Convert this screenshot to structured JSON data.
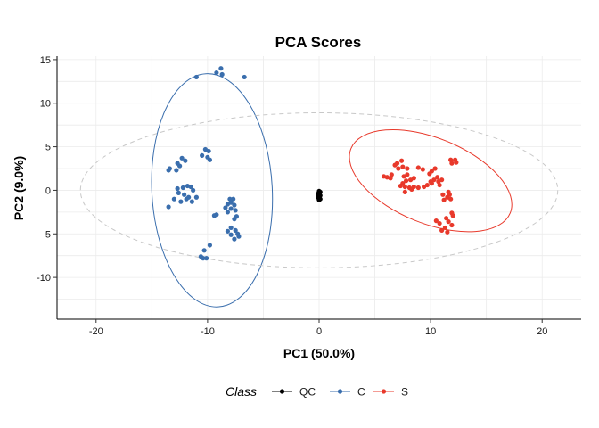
{
  "chart_data": {
    "type": "scatter",
    "title": "PCA Scores",
    "xlabel": "PC1 (50.0%)",
    "ylabel": "PC2 (9.0%)",
    "xlim": [
      -23.5,
      23.5
    ],
    "ylim": [
      -14.8,
      15.4
    ],
    "xticks": [
      -20,
      -10,
      0,
      10,
      20
    ],
    "yticks": [
      -10,
      -5,
      0,
      5,
      10,
      15
    ],
    "grid": true,
    "legend": {
      "title": "Class",
      "position": "bottom",
      "entries": [
        "QC",
        "C",
        "S"
      ]
    },
    "colors": {
      "QC": "#000000",
      "C": "#3a6ead",
      "S": "#e8392b",
      "overall": "#c8c8c8"
    },
    "ellipses": [
      {
        "name": "C",
        "cx": -9.6,
        "cy": 0,
        "rx": 5.4,
        "ry": 13.4,
        "angle_deg": 3,
        "style": "solid"
      },
      {
        "name": "S",
        "cx": 10.0,
        "cy": 1.1,
        "rx": 7.7,
        "ry": 4.9,
        "angle_deg": -22,
        "style": "solid"
      },
      {
        "name": "overall",
        "cx": 0.0,
        "cy": 0.0,
        "rx": 21.4,
        "ry": 8.9,
        "angle_deg": 0,
        "style": "dashed"
      }
    ],
    "series": [
      {
        "name": "QC",
        "points": [
          [
            0,
            -0.1
          ],
          [
            0,
            -0.3
          ],
          [
            0,
            -0.5
          ],
          [
            0,
            -0.7
          ],
          [
            0,
            -0.9
          ],
          [
            0,
            -1.1
          ],
          [
            -0.1,
            -0.4
          ],
          [
            0.1,
            -0.6
          ],
          [
            -0.1,
            -0.8
          ],
          [
            0.1,
            -0.2
          ],
          [
            0.1,
            -1.0
          ],
          [
            -0.1,
            -0.6
          ]
        ]
      },
      {
        "name": "C",
        "points": [
          [
            -11.0,
            13.0
          ],
          [
            -9.2,
            13.5
          ],
          [
            -8.8,
            14.0
          ],
          [
            -8.7,
            13.3
          ],
          [
            -6.7,
            13.0
          ],
          [
            -10.2,
            4.7
          ],
          [
            -9.9,
            4.5
          ],
          [
            -10.0,
            3.8
          ],
          [
            -10.5,
            4.0
          ],
          [
            -9.8,
            3.5
          ],
          [
            -12.3,
            3.7
          ],
          [
            -12.0,
            3.4
          ],
          [
            -12.7,
            3.1
          ],
          [
            -12.5,
            2.8
          ],
          [
            -13.4,
            2.5
          ],
          [
            -12.8,
            2.3
          ],
          [
            -13.5,
            2.3
          ],
          [
            -11.5,
            0.4
          ],
          [
            -11.8,
            0.5
          ],
          [
            -12.2,
            0.3
          ],
          [
            -12.7,
            0.2
          ],
          [
            -11.3,
            0.0
          ],
          [
            -12.6,
            -0.3
          ],
          [
            -12.1,
            -0.5
          ],
          [
            -11.7,
            -0.8
          ],
          [
            -11.0,
            -0.8
          ],
          [
            -11.9,
            -1.0
          ],
          [
            -11.4,
            -1.3
          ],
          [
            -13.0,
            -1.0
          ],
          [
            -12.4,
            -1.3
          ],
          [
            -13.5,
            -1.9
          ],
          [
            -8.0,
            -1.0
          ],
          [
            -7.7,
            -1.0
          ],
          [
            -7.9,
            -1.4
          ],
          [
            -8.2,
            -1.6
          ],
          [
            -7.6,
            -1.7
          ],
          [
            -8.4,
            -2.0
          ],
          [
            -7.9,
            -2.1
          ],
          [
            -7.5,
            -2.3
          ],
          [
            -8.2,
            -2.5
          ],
          [
            -9.2,
            -2.8
          ],
          [
            -9.4,
            -2.9
          ],
          [
            -7.4,
            -3.0
          ],
          [
            -7.6,
            -3.3
          ],
          [
            -7.9,
            -4.3
          ],
          [
            -7.5,
            -4.6
          ],
          [
            -8.2,
            -4.7
          ],
          [
            -7.3,
            -5.0
          ],
          [
            -7.9,
            -5.1
          ],
          [
            -7.2,
            -5.3
          ],
          [
            -7.6,
            -5.6
          ],
          [
            -9.8,
            -6.3
          ],
          [
            -10.3,
            -6.9
          ],
          [
            -10.6,
            -7.6
          ],
          [
            -10.4,
            -7.8
          ],
          [
            -10.1,
            -7.8
          ]
        ]
      },
      {
        "name": "S",
        "points": [
          [
            11.8,
            3.5
          ],
          [
            12.2,
            3.5
          ],
          [
            12.3,
            3.2
          ],
          [
            11.9,
            3.1
          ],
          [
            7.4,
            3.4
          ],
          [
            7.0,
            3.1
          ],
          [
            6.8,
            2.9
          ],
          [
            7.5,
            2.7
          ],
          [
            7.1,
            2.5
          ],
          [
            7.9,
            2.5
          ],
          [
            8.9,
            2.6
          ],
          [
            9.3,
            2.4
          ],
          [
            10.4,
            2.5
          ],
          [
            10.1,
            2.2
          ],
          [
            9.9,
            1.9
          ],
          [
            10.6,
            1.5
          ],
          [
            10.3,
            1.2
          ],
          [
            10.7,
            1.0
          ],
          [
            10.1,
            0.8
          ],
          [
            10.8,
            0.6
          ],
          [
            11.0,
            1.2
          ],
          [
            10.0,
            1.0
          ],
          [
            7.9,
            1.8
          ],
          [
            7.6,
            1.6
          ],
          [
            6.5,
            1.8
          ],
          [
            6.1,
            1.5
          ],
          [
            5.8,
            1.6
          ],
          [
            6.4,
            1.4
          ],
          [
            8.5,
            1.4
          ],
          [
            8.2,
            1.2
          ],
          [
            7.8,
            1.1
          ],
          [
            7.5,
            0.8
          ],
          [
            7.3,
            0.5
          ],
          [
            7.7,
            0.4
          ],
          [
            8.1,
            0.3
          ],
          [
            8.5,
            0.4
          ],
          [
            8.9,
            0.3
          ],
          [
            9.4,
            0.4
          ],
          [
            9.7,
            0.6
          ],
          [
            8.3,
            0.1
          ],
          [
            7.7,
            -0.2
          ],
          [
            11.6,
            -0.2
          ],
          [
            11.7,
            -0.5
          ],
          [
            11.1,
            -0.5
          ],
          [
            11.5,
            -0.8
          ],
          [
            11.8,
            -1.0
          ],
          [
            11.2,
            -1.1
          ],
          [
            11.9,
            -2.6
          ],
          [
            12.0,
            -2.9
          ],
          [
            11.4,
            -3.2
          ],
          [
            10.5,
            -3.5
          ],
          [
            10.8,
            -3.8
          ],
          [
            11.6,
            -3.6
          ],
          [
            11.9,
            -4.0
          ],
          [
            11.3,
            -4.3
          ],
          [
            11.0,
            -4.6
          ],
          [
            11.5,
            -4.8
          ]
        ]
      }
    ]
  }
}
